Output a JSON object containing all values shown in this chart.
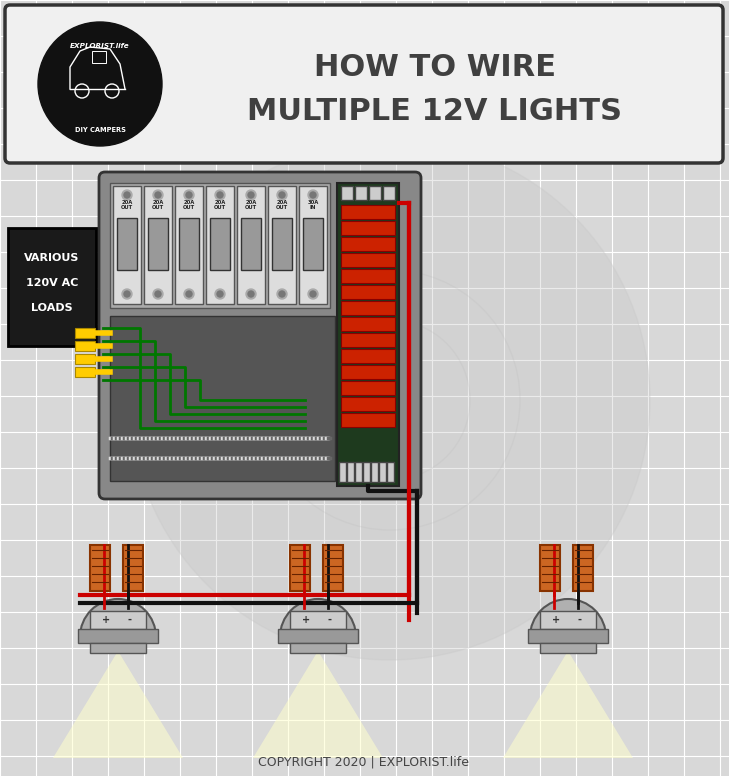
{
  "bg_color": "#d8d8d8",
  "grid_color": "#ffffff",
  "header_bg": "#f0f0f0",
  "panel_color": "#888888",
  "panel_dark": "#444444",
  "red_wire": "#cc0000",
  "black_wire": "#111111",
  "green_wire": "#007700",
  "white_wire": "#eeeeee",
  "yellow_wire": "#ffcc00",
  "orange_color": "#cc6622",
  "bus_bar_green": "#3a6a2a",
  "bus_bar_red": "#cc2200",
  "label_black_box": "#1a1a1a",
  "copyright": "COPYRIGHT 2020 | EXPLORIST.life",
  "title_line1": "HOW TO WIRE",
  "title_line2": "MULTIPLE 12V LIGHTS"
}
